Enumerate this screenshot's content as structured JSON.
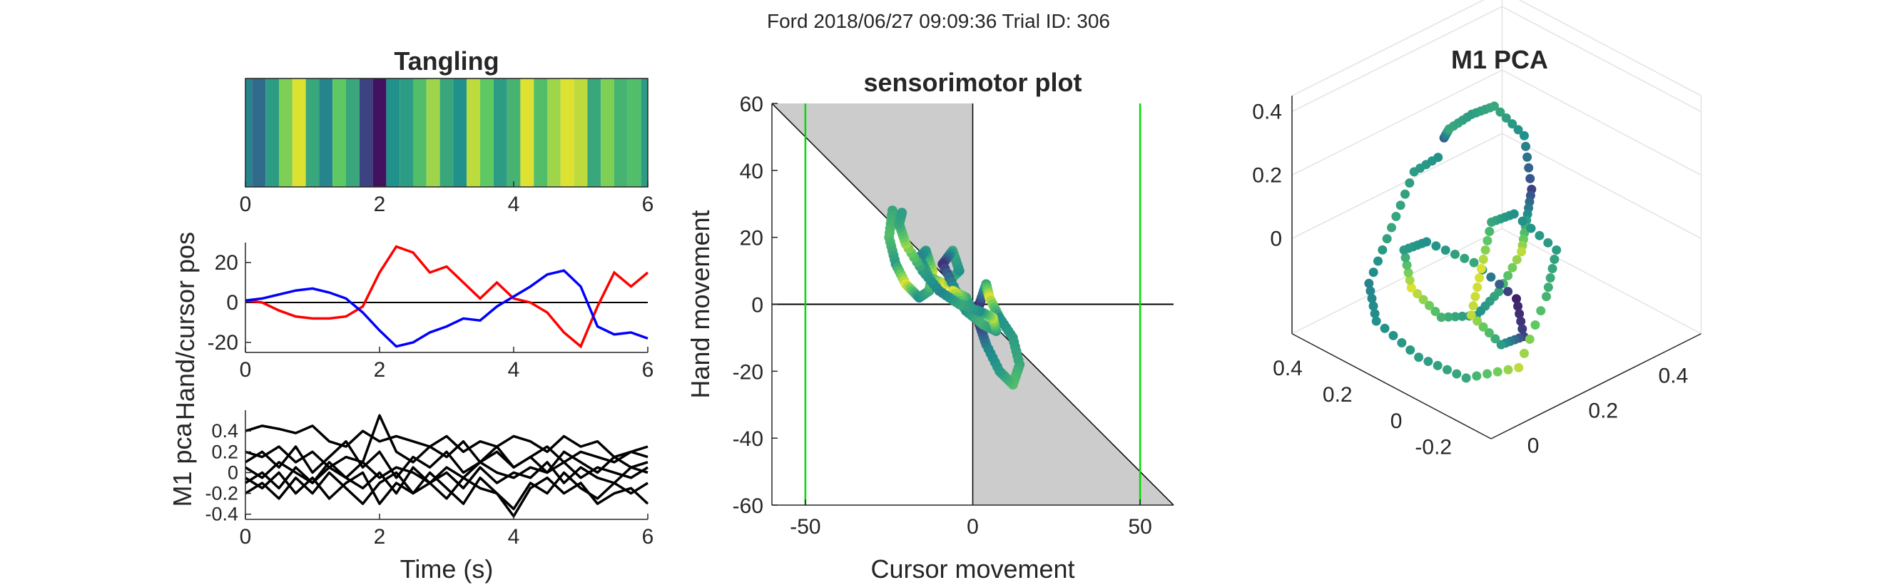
{
  "figure": {
    "suptitle": "Ford 2018/06/27 09:09:36 Trial ID: 306"
  },
  "colors": {
    "hand": "#ff0000",
    "cursor": "#0000ff",
    "pca_traces": "#000000",
    "green_lines": "#00dd00",
    "shade": "#cccccc",
    "viridis_low": "#440154",
    "viridis_mid": "#21918c",
    "viridis_high": "#fde725"
  },
  "chart_data": [
    {
      "id": "tangling",
      "type": "heatmap",
      "title": "Tangling",
      "xlim": [
        0,
        6
      ],
      "xticks": [
        "0",
        "2",
        "4",
        "6"
      ],
      "colormap": "viridis",
      "x": [
        0.0,
        0.2,
        0.4,
        0.6,
        0.8,
        1.0,
        1.2,
        1.4,
        1.6,
        1.8,
        2.0,
        2.2,
        2.4,
        2.6,
        2.8,
        3.0,
        3.2,
        3.4,
        3.6,
        3.8,
        4.0,
        4.2,
        4.4,
        4.6,
        4.8,
        5.0,
        5.2,
        5.4,
        5.6,
        5.8,
        6.0
      ],
      "values": [
        0.45,
        0.35,
        0.55,
        0.8,
        0.95,
        0.6,
        0.45,
        0.75,
        0.6,
        0.2,
        0.05,
        0.5,
        0.55,
        0.7,
        0.85,
        0.6,
        0.5,
        0.9,
        0.75,
        0.55,
        0.65,
        0.95,
        0.7,
        0.85,
        0.95,
        0.9,
        0.6,
        0.8,
        0.65,
        0.7,
        0.55
      ]
    },
    {
      "id": "hand-cursor",
      "type": "line",
      "ylabel": "Hand/cursor pos",
      "xlim": [
        0,
        6
      ],
      "ylim": [
        -25,
        30
      ],
      "xticks": [
        "0",
        "2",
        "4",
        "6"
      ],
      "yticks": [
        "20",
        "0",
        "-20"
      ],
      "x": [
        0.0,
        0.25,
        0.5,
        0.75,
        1.0,
        1.25,
        1.5,
        1.75,
        2.0,
        2.25,
        2.5,
        2.75,
        3.0,
        3.25,
        3.5,
        3.75,
        4.0,
        4.25,
        4.5,
        4.75,
        5.0,
        5.25,
        5.5,
        5.75,
        6.0
      ],
      "series": [
        {
          "name": "hand",
          "color": "#ff0000",
          "values": [
            1,
            0,
            -4,
            -7,
            -8,
            -8,
            -7,
            -2,
            15,
            28,
            25,
            15,
            18,
            10,
            2,
            10,
            2,
            0,
            -5,
            -15,
            -22,
            -2,
            15,
            8,
            15
          ]
        },
        {
          "name": "cursor",
          "color": "#0000ff",
          "values": [
            1,
            2,
            4,
            6,
            7,
            5,
            2,
            -5,
            -14,
            -22,
            -20,
            -15,
            -12,
            -8,
            -9,
            -2,
            3,
            8,
            14,
            16,
            8,
            -12,
            -16,
            -15,
            -18
          ]
        }
      ]
    },
    {
      "id": "m1-pca-traces",
      "type": "line",
      "ylabel": "M1 pca",
      "xlabel": "Time (s)",
      "xlim": [
        0,
        6
      ],
      "ylim": [
        -0.45,
        0.6
      ],
      "xticks": [
        "0",
        "2",
        "4",
        "6"
      ],
      "yticks": [
        "0.4",
        "0.2",
        "0",
        "-0.2",
        "-0.4"
      ],
      "x": [
        0.0,
        0.25,
        0.5,
        0.75,
        1.0,
        1.25,
        1.5,
        1.75,
        2.0,
        2.25,
        2.5,
        2.75,
        3.0,
        3.25,
        3.5,
        3.75,
        4.0,
        4.25,
        4.5,
        4.75,
        5.0,
        5.25,
        5.5,
        5.75,
        6.0
      ],
      "series": [
        {
          "values": [
            0.4,
            0.45,
            0.42,
            0.38,
            0.45,
            0.3,
            0.25,
            0.4,
            0.3,
            0.35,
            0.3,
            0.25,
            0.35,
            0.2,
            0.3,
            0.25,
            0.35,
            0.3,
            0.2,
            0.35,
            0.25,
            0.3,
            0.15,
            0.2,
            0.25
          ]
        },
        {
          "values": [
            0.2,
            0.15,
            0.25,
            0.1,
            0.2,
            0.05,
            0.15,
            0.1,
            0.55,
            0.2,
            0.1,
            0.25,
            0.15,
            0.3,
            0.1,
            0.2,
            0.05,
            0.15,
            0.25,
            0.1,
            0.2,
            0.15,
            0.1,
            0.2,
            0.15
          ]
        },
        {
          "values": [
            0.05,
            -0.05,
            0.1,
            0.0,
            -0.1,
            0.05,
            -0.05,
            0.1,
            -0.05,
            0.05,
            0.0,
            -0.1,
            0.05,
            -0.05,
            0.1,
            0.0,
            -0.05,
            0.05,
            0.0,
            0.1,
            -0.05,
            0.05,
            0.0,
            -0.05,
            0.05
          ]
        },
        {
          "values": [
            -0.1,
            0.0,
            -0.15,
            0.05,
            -0.1,
            0.1,
            -0.05,
            -0.15,
            0.0,
            -0.2,
            0.05,
            -0.1,
            0.0,
            -0.15,
            0.05,
            -0.1,
            0.0,
            -0.05,
            0.1,
            -0.1,
            0.05,
            -0.05,
            -0.1,
            0.05,
            0.0
          ]
        },
        {
          "values": [
            -0.2,
            -0.1,
            -0.25,
            -0.05,
            -0.2,
            0.0,
            -0.15,
            -0.3,
            -0.1,
            0.0,
            -0.2,
            -0.1,
            -0.25,
            -0.05,
            -0.15,
            -0.2,
            -0.35,
            -0.1,
            -0.2,
            0.0,
            -0.15,
            -0.25,
            -0.1,
            -0.2,
            -0.1
          ]
        },
        {
          "values": [
            0.1,
            0.2,
            0.05,
            0.25,
            0.0,
            0.15,
            0.3,
            0.05,
            0.2,
            -0.05,
            0.15,
            0.05,
            0.2,
            0.0,
            0.1,
            0.25,
            0.05,
            0.15,
            0.0,
            0.2,
            0.1,
            0.0,
            0.15,
            0.05,
            0.1
          ]
        },
        {
          "values": [
            -0.05,
            -0.15,
            0.0,
            -0.2,
            -0.05,
            -0.25,
            -0.1,
            0.0,
            -0.3,
            -0.1,
            -0.2,
            0.0,
            -0.15,
            -0.3,
            -0.05,
            -0.2,
            -0.42,
            -0.15,
            -0.05,
            -0.2,
            -0.1,
            -0.3,
            -0.2,
            -0.15,
            -0.3
          ]
        }
      ]
    },
    {
      "id": "sensorimotor",
      "type": "scatter",
      "title": "sensorimotor plot",
      "xlabel": "Cursor movement",
      "ylabel": "Hand movement",
      "xlim": [
        -60,
        60
      ],
      "ylim": [
        -60,
        60
      ],
      "xticks": [
        "-50",
        "0",
        "50"
      ],
      "yticks": [
        "60",
        "40",
        "20",
        "0",
        "-20",
        "-40",
        "-60"
      ],
      "green_lines_x": [
        -50,
        50
      ],
      "shaded_regions": "cursor<0 & hand>-cursor ; cursor>0 & hand<-cursor",
      "colormap": "viridis",
      "trajectory": [
        [
          -24,
          28
        ],
        [
          -25,
          20
        ],
        [
          -23,
          12
        ],
        [
          -20,
          6
        ],
        [
          -16,
          2
        ],
        [
          -13,
          4
        ],
        [
          -12,
          10
        ],
        [
          -14,
          16
        ],
        [
          -16,
          14
        ],
        [
          -13,
          8
        ],
        [
          -8,
          6
        ],
        [
          -4,
          10
        ],
        [
          -6,
          16
        ],
        [
          -9,
          12
        ],
        [
          -5,
          4
        ],
        [
          -1,
          -2
        ],
        [
          2,
          0
        ],
        [
          4,
          6
        ],
        [
          5,
          2
        ],
        [
          8,
          -4
        ],
        [
          12,
          -10
        ],
        [
          14,
          -18
        ],
        [
          12,
          -24
        ],
        [
          8,
          -20
        ],
        [
          4,
          -12
        ],
        [
          2,
          -6
        ],
        [
          -2,
          2
        ],
        [
          -6,
          4
        ],
        [
          -2,
          -2
        ],
        [
          3,
          -6
        ],
        [
          7,
          -8
        ],
        [
          6,
          -4
        ],
        [
          2,
          -2
        ],
        [
          -4,
          0
        ],
        [
          -10,
          4
        ],
        [
          -15,
          10
        ],
        [
          -20,
          18
        ],
        [
          -22,
          24
        ],
        [
          -21,
          28
        ]
      ],
      "trajectory_color_values": [
        0.6,
        0.7,
        0.55,
        0.95,
        0.5,
        0.6,
        0.9,
        0.55,
        0.45,
        0.6,
        0.95,
        0.5,
        0.6,
        0.15,
        0.55,
        0.9,
        0.1,
        0.6,
        0.95,
        0.5,
        0.55,
        0.6,
        0.7,
        0.55,
        0.45,
        0.2,
        0.6,
        0.95,
        0.5,
        0.65,
        0.55,
        0.9,
        0.5,
        0.6,
        0.45,
        0.55,
        0.85,
        0.6,
        0.55
      ]
    },
    {
      "id": "m1-pca-3d",
      "type": "scatter",
      "title": "M1 PCA",
      "zticks": [
        "0.4",
        "0.2",
        "0"
      ],
      "yticks": [
        "0.4",
        "0.2",
        "0",
        "-0.2"
      ],
      "xticks": [
        "0",
        "0.2",
        "0.4"
      ],
      "colormap": "viridis",
      "points": [
        [
          0.05,
          0.1,
          0.4
        ],
        [
          0.1,
          0.15,
          0.38
        ],
        [
          0.2,
          0.2,
          0.35
        ],
        [
          0.3,
          0.25,
          0.3
        ],
        [
          0.35,
          0.2,
          0.2
        ],
        [
          0.3,
          0.1,
          0.1
        ],
        [
          0.25,
          0.05,
          0.05
        ],
        [
          0.2,
          0.0,
          0.0
        ],
        [
          0.1,
          -0.05,
          -0.05
        ],
        [
          0.0,
          -0.1,
          -0.05
        ],
        [
          -0.1,
          -0.1,
          0.0
        ],
        [
          -0.15,
          -0.05,
          0.1
        ],
        [
          -0.1,
          0.05,
          0.15
        ],
        [
          0.0,
          0.1,
          0.1
        ],
        [
          0.1,
          0.05,
          0.0
        ],
        [
          0.15,
          -0.05,
          -0.1
        ],
        [
          0.1,
          -0.15,
          -0.15
        ],
        [
          0.0,
          -0.2,
          -0.1
        ],
        [
          -0.05,
          -0.15,
          0.0
        ],
        [
          0.05,
          -0.05,
          0.05
        ],
        [
          0.15,
          0.05,
          0.1
        ],
        [
          0.25,
          0.1,
          0.05
        ],
        [
          0.3,
          0.0,
          -0.05
        ],
        [
          0.2,
          -0.1,
          -0.1
        ],
        [
          0.05,
          -0.2,
          -0.2
        ],
        [
          -0.1,
          -0.2,
          -0.15
        ],
        [
          -0.2,
          -0.15,
          -0.05
        ],
        [
          -0.25,
          -0.05,
          0.05
        ],
        [
          -0.2,
          0.05,
          0.1
        ],
        [
          -0.1,
          0.1,
          0.2
        ],
        [
          0.0,
          0.15,
          0.3
        ],
        [
          0.05,
          0.1,
          0.35
        ]
      ],
      "color_values": [
        0.3,
        0.6,
        0.55,
        0.6,
        0.5,
        0.2,
        0.55,
        0.9,
        0.6,
        0.5,
        0.65,
        0.95,
        0.55,
        0.5,
        0.6,
        0.1,
        0.2,
        0.55,
        0.9,
        0.95,
        0.6,
        0.5,
        0.55,
        0.65,
        0.9,
        0.6,
        0.55,
        0.5,
        0.45,
        0.6,
        0.55,
        0.5
      ]
    }
  ]
}
